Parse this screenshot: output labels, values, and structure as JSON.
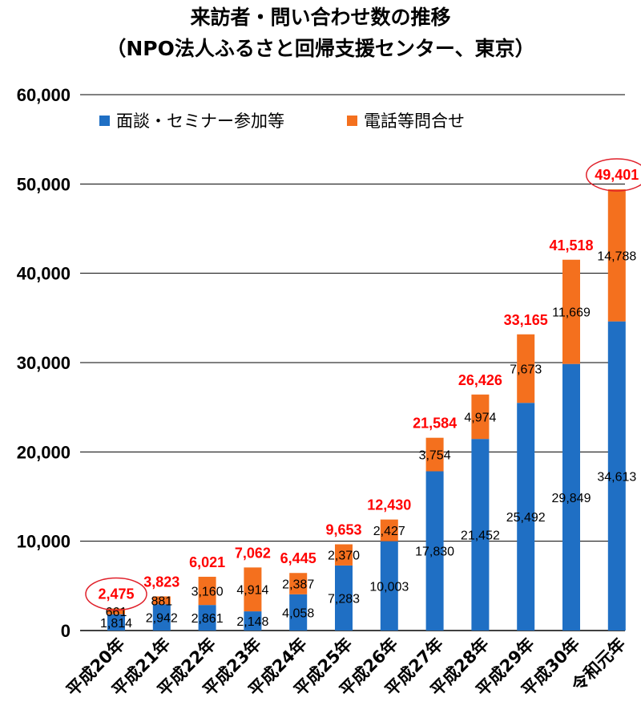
{
  "title_line1": "来訪者・問い合わせ数の推移",
  "title_line2": "（NPO法人ふるさと回帰支援センター、東京）",
  "colors": {
    "series1": "#1f6fc4",
    "series2": "#f4701e",
    "total": "#ff0000",
    "highlight_ellipse": "#e0202a"
  },
  "chart_data": {
    "type": "bar",
    "stacked": true,
    "categories": [
      "平成20年",
      "平成21年",
      "平成22年",
      "平成23年",
      "平成24年",
      "平成25年",
      "平成26年",
      "平成27年",
      "平成28年",
      "平成29年",
      "平成30年",
      "令和元年"
    ],
    "series": [
      {
        "name": "面談・セミナー参加等",
        "values": [
          1814,
          2942,
          2861,
          2148,
          4058,
          7283,
          10003,
          17830,
          21452,
          25492,
          29849,
          34613
        ],
        "labels": [
          "1,814",
          "2,942",
          "2,861",
          "2,148",
          "4,058",
          "7,283",
          "10,003",
          "17,830",
          "21,452",
          "25,492",
          "29,849",
          "34,613"
        ]
      },
      {
        "name": "電話等問合せ",
        "values": [
          661,
          881,
          3160,
          4914,
          2387,
          2370,
          2427,
          3754,
          4974,
          7673,
          11669,
          14788
        ],
        "labels": [
          "661",
          "881",
          "3,160",
          "4,914",
          "2,387",
          "2,370",
          "2,427",
          "3,754",
          "4,974",
          "7,673",
          "11,669",
          "14,788"
        ]
      }
    ],
    "totals": [
      2475,
      3823,
      6021,
      7062,
      6445,
      9653,
      12430,
      21584,
      26426,
      33165,
      41518,
      49401
    ],
    "total_labels": [
      "2,475",
      "3,823",
      "6,021",
      "7,062",
      "6,445",
      "9,653",
      "12,430",
      "21,584",
      "26,426",
      "33,165",
      "41,518",
      "49,401"
    ],
    "highlighted_totals": [
      0,
      11
    ],
    "ylim": [
      0,
      60000
    ],
    "yticks": [
      0,
      10000,
      20000,
      30000,
      40000,
      50000,
      60000
    ],
    "ytick_labels": [
      "0",
      "10,000",
      "20,000",
      "30,000",
      "40,000",
      "50,000",
      "60,000"
    ],
    "grid": true,
    "legend_position": "top-left"
  }
}
